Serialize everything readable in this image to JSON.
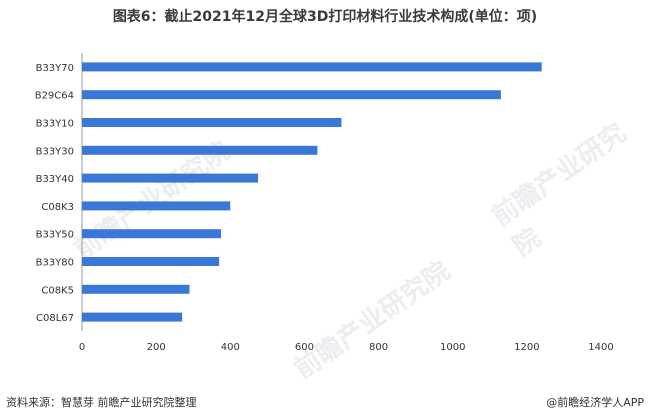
{
  "title": "图表6：截止2021年12月全球3D打印材料行业技术构成(单位：项)",
  "footer": {
    "source": "资料来源：智慧芽 前瞻产业研究院整理",
    "brand": "@前瞻经济学人APP"
  },
  "watermark": "前瞻产业研究院",
  "colors": {
    "bar": "#3a78d8",
    "axis": "#999999",
    "text": "#333333"
  },
  "chart_data": {
    "type": "bar",
    "orientation": "horizontal",
    "categories": [
      "B33Y70",
      "B29C64",
      "B33Y10",
      "B33Y30",
      "B33Y40",
      "C08K3",
      "B33Y50",
      "B33Y80",
      "C08K5",
      "C08L67"
    ],
    "values": [
      1240,
      1130,
      700,
      635,
      475,
      400,
      375,
      370,
      290,
      270
    ],
    "xlim": [
      0,
      1400
    ],
    "xticks": [
      0,
      200,
      400,
      600,
      800,
      1000,
      1200,
      1400
    ],
    "grid": false,
    "legend": "none"
  }
}
